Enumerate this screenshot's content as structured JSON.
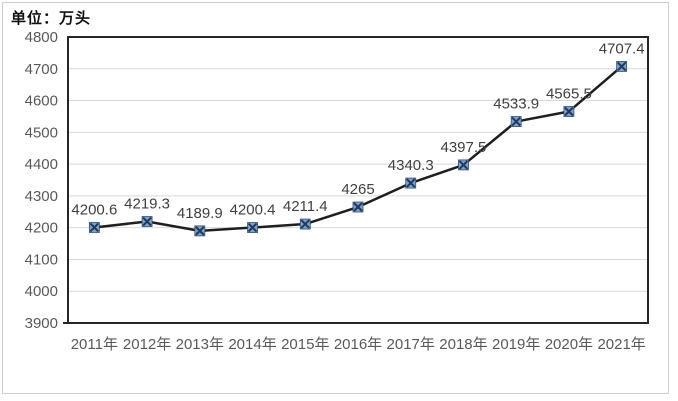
{
  "unit_label": "单位：万头",
  "chart_data": {
    "type": "line",
    "title": "",
    "unit": "单位：万头",
    "categories": [
      "2011年",
      "2012年",
      "2013年",
      "2014年",
      "2015年",
      "2016年",
      "2017年",
      "2018年",
      "2019年",
      "2020年",
      "2021年"
    ],
    "values": [
      4200.6,
      4219.3,
      4189.9,
      4200.4,
      4211.4,
      4265,
      4340.3,
      4397.5,
      4533.9,
      4565.5,
      4707.4
    ],
    "point_labels": [
      "4200.6",
      "4219.3",
      "4189.9",
      "4200.4",
      "4211.4",
      "4265",
      "4340.3",
      "4397.5",
      "4533.9",
      "4565.5",
      "4707.4"
    ],
    "xlabel": "",
    "ylabel": "",
    "ylim": [
      3900,
      4800
    ],
    "ytick_step": 100,
    "grid": true,
    "legend": "none",
    "marker": "x-square",
    "colors": {
      "line": "#1f1f1f",
      "marker_fill": "#7fa1cb",
      "marker_border": "#2f4f74",
      "marker_x": "#1e3a5f",
      "gridline": "#d9d9d9",
      "plot_border": "#262626",
      "tick_label": "#595959",
      "data_label": "#404040",
      "outer_border": "#cfcfcf"
    }
  }
}
